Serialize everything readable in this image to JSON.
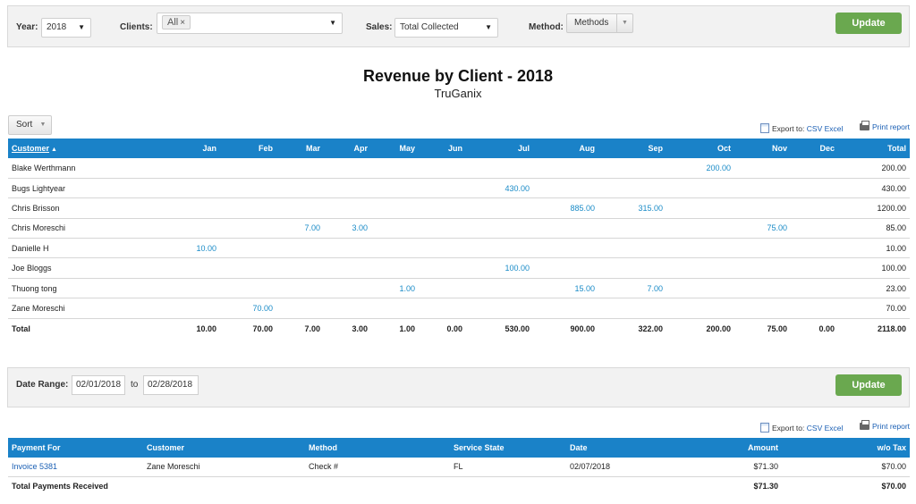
{
  "filters": {
    "year_label": "Year:",
    "year_value": "2018",
    "clients_label": "Clients:",
    "clients_tag": "All",
    "sales_label": "Sales:",
    "sales_value": "Total Collected",
    "method_label": "Method:",
    "method_value": "Methods",
    "update_label": "Update"
  },
  "report": {
    "title": "Revenue by Client - 2018",
    "subtitle": "TruGanix"
  },
  "sort_label": "Sort",
  "export": {
    "prefix": "Export to:",
    "csv": "CSV",
    "excel": "Excel",
    "print": "Print report"
  },
  "revenue_table": {
    "headers": [
      "Customer",
      "Jan",
      "Feb",
      "Mar",
      "Apr",
      "May",
      "Jun",
      "Jul",
      "Aug",
      "Sep",
      "Oct",
      "Nov",
      "Dec",
      "Total"
    ],
    "rows": [
      {
        "customer": "Blake Werthmann",
        "months": [
          "",
          "",
          "",
          "",
          "",
          "",
          "",
          "",
          "",
          "200.00",
          "",
          ""
        ],
        "total": "200.00"
      },
      {
        "customer": "Bugs Lightyear",
        "months": [
          "",
          "",
          "",
          "",
          "",
          "",
          "430.00",
          "",
          "",
          "",
          "",
          ""
        ],
        "total": "430.00"
      },
      {
        "customer": "Chris Brisson",
        "months": [
          "",
          "",
          "",
          "",
          "",
          "",
          "",
          "885.00",
          "315.00",
          "",
          "",
          ""
        ],
        "total": "1200.00"
      },
      {
        "customer": "Chris Moreschi",
        "months": [
          "",
          "",
          "7.00",
          "3.00",
          "",
          "",
          "",
          "",
          "",
          "",
          "75.00",
          ""
        ],
        "total": "85.00"
      },
      {
        "customer": "Danielle H",
        "months": [
          "10.00",
          "",
          "",
          "",
          "",
          "",
          "",
          "",
          "",
          "",
          "",
          ""
        ],
        "total": "10.00"
      },
      {
        "customer": "Joe Bloggs",
        "months": [
          "",
          "",
          "",
          "",
          "",
          "",
          "100.00",
          "",
          "",
          "",
          "",
          ""
        ],
        "total": "100.00"
      },
      {
        "customer": "Thuong tong",
        "months": [
          "",
          "",
          "",
          "",
          "1.00",
          "",
          "",
          "15.00",
          "7.00",
          "",
          "",
          ""
        ],
        "total": "23.00"
      },
      {
        "customer": "Zane Moreschi",
        "months": [
          "",
          "70.00",
          "",
          "",
          "",
          "",
          "",
          "",
          "",
          "",
          "",
          ""
        ],
        "total": "70.00"
      }
    ],
    "total_row": {
      "label": "Total",
      "months": [
        "10.00",
        "70.00",
        "7.00",
        "3.00",
        "1.00",
        "0.00",
        "530.00",
        "900.00",
        "322.00",
        "200.00",
        "75.00",
        "0.00"
      ],
      "total": "2118.00"
    }
  },
  "date_range": {
    "label": "Date Range:",
    "from": "02/01/2018",
    "to_label": "to",
    "to": "02/28/2018",
    "update_label": "Update"
  },
  "payments_table": {
    "headers": [
      "Payment For",
      "Customer",
      "Method",
      "Service State",
      "Date",
      "Amount",
      "w/o Tax"
    ],
    "rows": [
      {
        "payment_for": "Invoice 5381",
        "customer": "Zane Moreschi",
        "method": "Check #",
        "state": "FL",
        "date": "02/07/2018",
        "amount": "$71.30",
        "wo_tax": "$70.00"
      }
    ],
    "total_row": {
      "label": "Total Payments Received",
      "amount": "$71.30",
      "wo_tax": "$70.00"
    }
  },
  "colors": {
    "header_blue": "#1a82c8",
    "update_green": "#6aa84f",
    "value_blue": "#1a8bc7"
  }
}
